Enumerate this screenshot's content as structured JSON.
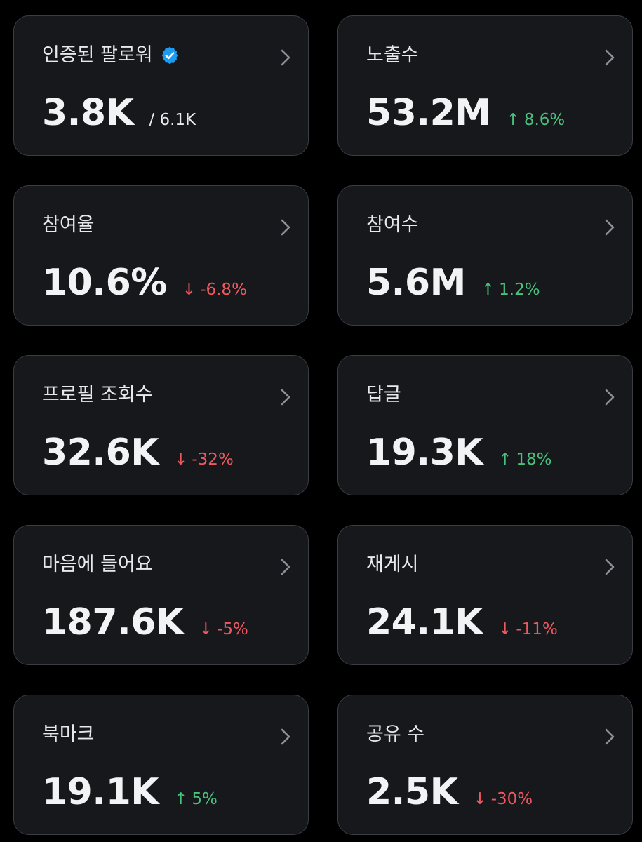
{
  "colors": {
    "background": "#000000",
    "card_background": "#16181c",
    "card_border": "#3a3d43",
    "text_primary": "#f2f3f4",
    "positive": "#49c17d",
    "negative": "#f0585e",
    "verified_badge": "#1d9bf0"
  },
  "cards": [
    {
      "label": "인증된 팔로워",
      "value": "3.8K",
      "sub": "/ 6.1K",
      "change": "",
      "direction": "none",
      "icon": "verified-badge-icon"
    },
    {
      "label": "노출수",
      "value": "53.2M",
      "change": "8.6%",
      "direction": "up",
      "arrow": "↑"
    },
    {
      "label": "참여율",
      "value": "10.6%",
      "change": "-6.8%",
      "direction": "down",
      "arrow": "↓"
    },
    {
      "label": "참여수",
      "value": "5.6M",
      "change": "1.2%",
      "direction": "up",
      "arrow": "↑"
    },
    {
      "label": "프로필 조회수",
      "value": "32.6K",
      "change": "-32%",
      "direction": "down",
      "arrow": "↓"
    },
    {
      "label": "답글",
      "value": "19.3K",
      "change": "18%",
      "direction": "up",
      "arrow": "↑"
    },
    {
      "label": "마음에 들어요",
      "value": "187.6K",
      "change": "-5%",
      "direction": "down",
      "arrow": "↓"
    },
    {
      "label": "재게시",
      "value": "24.1K",
      "change": "-11%",
      "direction": "down",
      "arrow": "↓"
    },
    {
      "label": "북마크",
      "value": "19.1K",
      "change": "5%",
      "direction": "up",
      "arrow": "↑"
    },
    {
      "label": "공유 수",
      "value": "2.5K",
      "change": "-30%",
      "direction": "down",
      "arrow": "↓"
    }
  ]
}
